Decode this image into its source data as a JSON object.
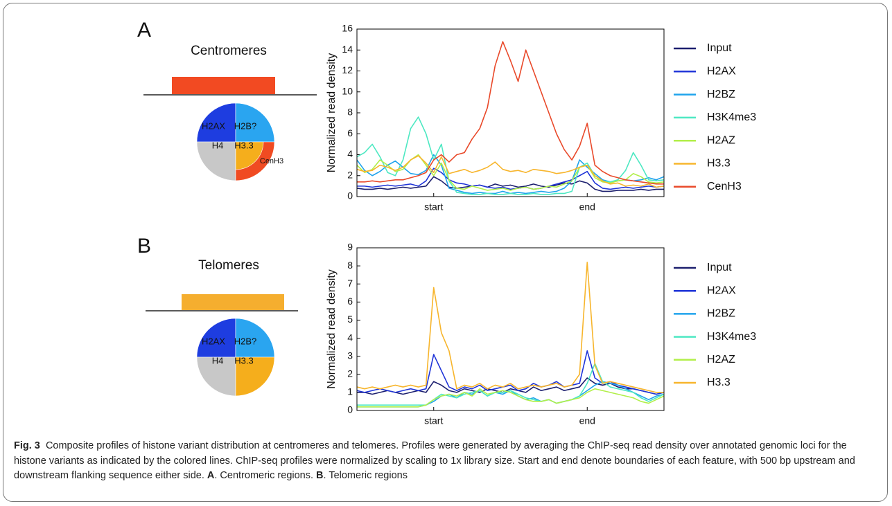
{
  "chart_data": [
    {
      "type": "line",
      "panel": "A",
      "ylabel": "Normalized read density",
      "diagram": {
        "region": "Centromeres",
        "labels": [
          "H2AX",
          "H2B?",
          "H4",
          "H3.3",
          "CenH3"
        ]
      },
      "x": [
        0,
        1,
        2,
        3,
        4,
        5,
        6,
        7,
        8,
        9,
        10,
        11,
        12,
        13,
        14,
        15,
        16,
        17,
        18,
        19,
        20,
        21,
        22,
        23,
        24,
        25,
        26,
        27,
        28,
        29,
        30,
        31,
        32,
        33,
        34,
        35,
        36,
        37,
        38,
        39,
        40
      ],
      "xlim": [
        0,
        40
      ],
      "xticks": [
        {
          "value": 10,
          "label": "start"
        },
        {
          "value": 30,
          "label": "end"
        }
      ],
      "ylim": [
        0,
        16
      ],
      "yticks": [
        0,
        2,
        4,
        6,
        8,
        10,
        12,
        14,
        16
      ],
      "grid": false,
      "series": [
        {
          "name": "Input",
          "color": "#1c1f6e",
          "values": [
            0.8,
            0.7,
            0.7,
            0.8,
            0.7,
            0.8,
            0.9,
            0.8,
            0.9,
            1.0,
            1.9,
            1.5,
            0.9,
            0.8,
            0.9,
            1.0,
            1.1,
            0.9,
            1.2,
            1.0,
            1.1,
            0.9,
            1.0,
            1.2,
            1.0,
            0.9,
            1.1,
            1.3,
            1.2,
            1.5,
            1.3,
            0.7,
            0.5,
            0.5,
            0.6,
            0.6,
            0.6,
            0.7,
            0.6,
            0.7,
            0.7
          ]
        },
        {
          "name": "H2AX",
          "color": "#2035d8",
          "values": [
            1.0,
            1.0,
            0.9,
            1.0,
            1.1,
            1.0,
            1.1,
            1.2,
            1.0,
            1.5,
            2.7,
            2.3,
            1.6,
            1.3,
            1.2,
            1.0,
            1.1,
            0.9,
            0.8,
            0.9,
            0.7,
            0.8,
            0.9,
            0.7,
            0.8,
            1.0,
            1.2,
            1.4,
            1.6,
            2.0,
            2.4,
            1.3,
            0.8,
            0.7,
            0.8,
            0.9,
            0.8,
            0.9,
            1.0,
            0.9,
            1.0
          ]
        },
        {
          "name": "H2BZ",
          "color": "#1fa3ec",
          "values": [
            3.5,
            2.5,
            2.0,
            2.4,
            3.0,
            3.4,
            2.8,
            2.2,
            2.1,
            2.5,
            4.0,
            3.0,
            0.8,
            0.6,
            0.4,
            0.3,
            0.4,
            0.3,
            0.3,
            0.5,
            0.3,
            0.4,
            0.3,
            0.4,
            0.5,
            0.4,
            0.5,
            0.8,
            1.5,
            3.5,
            2.8,
            2.2,
            1.6,
            1.4,
            1.5,
            1.6,
            1.5,
            1.6,
            1.8,
            1.6,
            1.9
          ]
        },
        {
          "name": "H3K4me3",
          "color": "#4de8c2",
          "values": [
            3.8,
            4.2,
            5.0,
            3.8,
            2.3,
            2.0,
            3.5,
            6.5,
            7.6,
            6.0,
            3.5,
            5.0,
            1.5,
            0.4,
            0.3,
            0.2,
            0.2,
            0.3,
            0.2,
            0.2,
            0.3,
            0.2,
            0.2,
            0.3,
            0.2,
            0.2,
            0.3,
            0.3,
            0.5,
            2.8,
            3.2,
            2.0,
            1.5,
            1.4,
            1.6,
            2.5,
            4.2,
            3.0,
            1.6,
            1.5,
            1.6
          ]
        },
        {
          "name": "H2AZ",
          "color": "#b2ef4a",
          "values": [
            3.0,
            2.3,
            2.6,
            3.5,
            3.0,
            2.4,
            2.6,
            3.5,
            4.0,
            3.0,
            2.0,
            3.2,
            1.6,
            0.8,
            0.7,
            1.0,
            0.8,
            0.6,
            0.7,
            0.8,
            0.6,
            0.8,
            0.9,
            0.7,
            0.8,
            1.0,
            0.9,
            1.2,
            1.5,
            2.8,
            3.0,
            1.8,
            1.4,
            1.3,
            1.5,
            1.6,
            2.2,
            1.9,
            1.4,
            1.3,
            1.4
          ]
        },
        {
          "name": "H3.3",
          "color": "#f7b52c",
          "values": [
            2.6,
            2.4,
            2.5,
            3.0,
            2.8,
            2.5,
            2.8,
            3.5,
            3.9,
            3.2,
            2.3,
            3.8,
            2.2,
            2.4,
            2.6,
            2.3,
            2.5,
            2.8,
            3.3,
            2.6,
            2.4,
            2.5,
            2.3,
            2.6,
            2.5,
            2.4,
            2.2,
            2.3,
            2.5,
            2.8,
            3.0,
            2.0,
            1.5,
            1.2,
            1.3,
            1.0,
            1.1,
            1.0,
            1.2,
            0.9,
            1.0
          ]
        },
        {
          "name": "CenH3",
          "color": "#e9492a",
          "values": [
            1.4,
            1.4,
            1.5,
            1.4,
            1.5,
            1.6,
            1.6,
            1.8,
            2.0,
            2.3,
            3.5,
            4.0,
            3.3,
            4.0,
            4.2,
            5.5,
            6.5,
            8.5,
            12.5,
            14.8,
            13.0,
            11.0,
            14.0,
            12.0,
            10.0,
            8.0,
            6.0,
            4.5,
            3.5,
            4.8,
            7.0,
            3.0,
            2.4,
            2.0,
            1.8,
            1.6,
            1.5,
            1.4,
            1.3,
            1.2,
            1.2
          ]
        }
      ]
    },
    {
      "type": "line",
      "panel": "B",
      "ylabel": "Normalized read density",
      "diagram": {
        "region": "Telomeres",
        "labels": [
          "H2AX",
          "H2B?",
          "H4",
          "H3.3"
        ]
      },
      "x": [
        0,
        1,
        2,
        3,
        4,
        5,
        6,
        7,
        8,
        9,
        10,
        11,
        12,
        13,
        14,
        15,
        16,
        17,
        18,
        19,
        20,
        21,
        22,
        23,
        24,
        25,
        26,
        27,
        28,
        29,
        30,
        31,
        32,
        33,
        34,
        35,
        36,
        37,
        38,
        39,
        40
      ],
      "xlim": [
        0,
        40
      ],
      "xticks": [
        {
          "value": 10,
          "label": "start"
        },
        {
          "value": 30,
          "label": "end"
        }
      ],
      "ylim": [
        0,
        9
      ],
      "yticks": [
        0,
        1,
        2,
        3,
        4,
        5,
        6,
        7,
        8,
        9
      ],
      "grid": false,
      "series": [
        {
          "name": "Input",
          "color": "#1c1f6e",
          "values": [
            1.0,
            1.0,
            0.9,
            1.0,
            1.1,
            1.0,
            0.9,
            1.0,
            1.1,
            1.0,
            1.6,
            1.4,
            1.1,
            1.0,
            1.2,
            1.1,
            1.0,
            1.2,
            1.1,
            1.0,
            1.2,
            1.1,
            1.0,
            1.3,
            1.1,
            1.2,
            1.3,
            1.1,
            1.2,
            1.3,
            1.8,
            1.5,
            1.4,
            1.5,
            1.3,
            1.2,
            1.2,
            1.1,
            1.0,
            0.9,
            1.0
          ]
        },
        {
          "name": "H2AX",
          "color": "#2035d8",
          "values": [
            1.1,
            1.0,
            1.1,
            1.2,
            1.1,
            1.0,
            1.1,
            1.2,
            1.1,
            1.2,
            3.1,
            2.2,
            1.3,
            1.1,
            1.3,
            1.2,
            1.4,
            1.1,
            1.2,
            1.3,
            1.4,
            1.1,
            1.2,
            1.5,
            1.3,
            1.4,
            1.6,
            1.3,
            1.4,
            1.5,
            3.3,
            1.8,
            1.5,
            1.6,
            1.4,
            1.3,
            1.2,
            1.1,
            1.0,
            0.9,
            1.0
          ]
        },
        {
          "name": "H2BZ",
          "color": "#1fa3ec",
          "values": [
            0.2,
            0.2,
            0.2,
            0.2,
            0.2,
            0.2,
            0.2,
            0.2,
            0.2,
            0.3,
            0.5,
            0.8,
            0.9,
            0.7,
            1.0,
            0.9,
            1.1,
            0.8,
            1.0,
            0.9,
            1.1,
            0.8,
            0.6,
            0.7,
            0.5,
            0.6,
            0.4,
            0.5,
            0.6,
            0.8,
            1.1,
            1.4,
            1.6,
            1.5,
            1.4,
            1.2,
            1.0,
            0.8,
            0.6,
            0.8,
            0.9
          ]
        },
        {
          "name": "H3K4me3",
          "color": "#4de8c2",
          "values": [
            0.3,
            0.3,
            0.3,
            0.3,
            0.3,
            0.3,
            0.3,
            0.3,
            0.3,
            0.3,
            0.6,
            0.9,
            0.8,
            0.7,
            0.9,
            1.0,
            1.1,
            0.8,
            1.0,
            1.0,
            1.1,
            0.9,
            0.7,
            0.6,
            0.5,
            0.6,
            0.4,
            0.5,
            0.6,
            0.8,
            1.5,
            2.6,
            1.6,
            1.3,
            1.2,
            1.1,
            1.0,
            0.7,
            0.5,
            0.7,
            0.9
          ]
        },
        {
          "name": "H2AZ",
          "color": "#b2ef4a",
          "values": [
            0.2,
            0.2,
            0.2,
            0.2,
            0.2,
            0.2,
            0.2,
            0.2,
            0.2,
            0.3,
            0.6,
            0.8,
            0.9,
            0.8,
            1.0,
            0.8,
            1.2,
            0.9,
            1.0,
            1.1,
            1.0,
            0.8,
            0.6,
            0.5,
            0.5,
            0.6,
            0.4,
            0.5,
            0.6,
            0.7,
            1.0,
            1.2,
            1.1,
            1.0,
            0.9,
            0.8,
            0.7,
            0.5,
            0.4,
            0.6,
            0.8
          ]
        },
        {
          "name": "H3.3",
          "color": "#f7b52c",
          "values": [
            1.3,
            1.2,
            1.3,
            1.2,
            1.3,
            1.4,
            1.3,
            1.4,
            1.3,
            1.4,
            6.8,
            4.3,
            3.3,
            1.2,
            1.4,
            1.3,
            1.5,
            1.2,
            1.4,
            1.3,
            1.5,
            1.2,
            1.3,
            1.4,
            1.3,
            1.4,
            1.5,
            1.3,
            1.4,
            2.0,
            8.2,
            2.5,
            1.5,
            1.6,
            1.5,
            1.4,
            1.3,
            1.2,
            1.1,
            1.0,
            1.0
          ]
        }
      ]
    }
  ],
  "caption": {
    "label": "Fig. 3",
    "body": "Composite profiles of histone variant distribution at centromeres and telomeres. Profiles were generated by averaging the ChIP-seq read density over annotated genomic loci for the histone variants as indicated by the colored lines. ChIP-seq profiles were normalized by scaling to 1x library size. Start and end denote boundaries of each feature, with 500 bp upstream and downstream flanking sequence either side.",
    "panels": [
      {
        "label": "A",
        "text": ". Centromeric regions."
      },
      {
        "label": "B",
        "text": ". Telomeric regions"
      }
    ]
  }
}
